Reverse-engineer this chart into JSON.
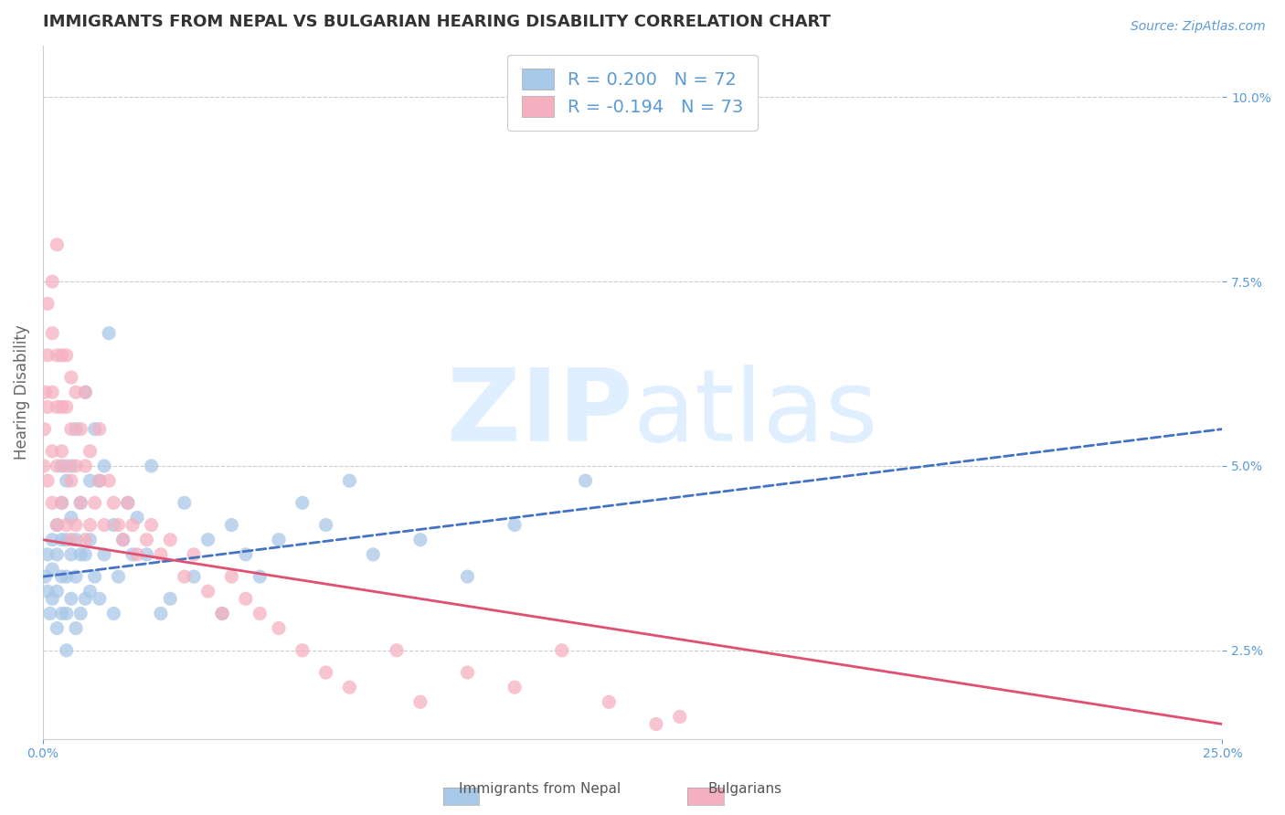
{
  "title": "IMMIGRANTS FROM NEPAL VS BULGARIAN HEARING DISABILITY CORRELATION CHART",
  "source": "Source: ZipAtlas.com",
  "ylabel": "Hearing Disability",
  "xlim": [
    0.0,
    0.25
  ],
  "ylim": [
    0.013,
    0.107
  ],
  "nepal_color": "#a8c8e8",
  "bulgarian_color": "#f5b0c0",
  "nepal_trend_color": "#4472c4",
  "bulgarian_trend_color": "#e05070",
  "background_color": "#ffffff",
  "title_color": "#333333",
  "axis_color": "#5b9bd5",
  "legend_R_color": "#333333",
  "legend_N_color": "#5b9bd5",
  "watermark_color": "#ddeeff",
  "grid_color": "#cccccc",
  "nepal_R": 0.2,
  "bulgarian_R": -0.194,
  "nepal_N": 72,
  "bulgarian_N": 73,
  "nepal_scatter_x": [
    0.0005,
    0.001,
    0.001,
    0.0015,
    0.002,
    0.002,
    0.002,
    0.003,
    0.003,
    0.003,
    0.003,
    0.004,
    0.004,
    0.004,
    0.004,
    0.004,
    0.005,
    0.005,
    0.005,
    0.005,
    0.005,
    0.006,
    0.006,
    0.006,
    0.006,
    0.007,
    0.007,
    0.007,
    0.007,
    0.008,
    0.008,
    0.008,
    0.009,
    0.009,
    0.009,
    0.01,
    0.01,
    0.01,
    0.011,
    0.011,
    0.012,
    0.012,
    0.013,
    0.013,
    0.014,
    0.015,
    0.015,
    0.016,
    0.017,
    0.018,
    0.019,
    0.02,
    0.022,
    0.023,
    0.025,
    0.027,
    0.03,
    0.032,
    0.035,
    0.038,
    0.04,
    0.043,
    0.046,
    0.05,
    0.055,
    0.06,
    0.065,
    0.07,
    0.08,
    0.09,
    0.1,
    0.115
  ],
  "nepal_scatter_y": [
    0.035,
    0.033,
    0.038,
    0.03,
    0.032,
    0.036,
    0.04,
    0.028,
    0.033,
    0.038,
    0.042,
    0.03,
    0.035,
    0.04,
    0.045,
    0.05,
    0.025,
    0.03,
    0.035,
    0.04,
    0.048,
    0.032,
    0.038,
    0.043,
    0.05,
    0.028,
    0.035,
    0.04,
    0.055,
    0.03,
    0.038,
    0.045,
    0.032,
    0.038,
    0.06,
    0.033,
    0.04,
    0.048,
    0.035,
    0.055,
    0.032,
    0.048,
    0.038,
    0.05,
    0.068,
    0.03,
    0.042,
    0.035,
    0.04,
    0.045,
    0.038,
    0.043,
    0.038,
    0.05,
    0.03,
    0.032,
    0.045,
    0.035,
    0.04,
    0.03,
    0.042,
    0.038,
    0.035,
    0.04,
    0.045,
    0.042,
    0.048,
    0.038,
    0.04,
    0.035,
    0.042,
    0.048
  ],
  "bulgarian_scatter_x": [
    0.0002,
    0.0003,
    0.0005,
    0.001,
    0.001,
    0.001,
    0.001,
    0.002,
    0.002,
    0.002,
    0.002,
    0.002,
    0.003,
    0.003,
    0.003,
    0.003,
    0.003,
    0.004,
    0.004,
    0.004,
    0.004,
    0.005,
    0.005,
    0.005,
    0.005,
    0.006,
    0.006,
    0.006,
    0.006,
    0.007,
    0.007,
    0.007,
    0.008,
    0.008,
    0.009,
    0.009,
    0.009,
    0.01,
    0.01,
    0.011,
    0.012,
    0.012,
    0.013,
    0.014,
    0.015,
    0.016,
    0.017,
    0.018,
    0.019,
    0.02,
    0.022,
    0.023,
    0.025,
    0.027,
    0.03,
    0.032,
    0.035,
    0.038,
    0.04,
    0.043,
    0.046,
    0.05,
    0.055,
    0.06,
    0.065,
    0.075,
    0.08,
    0.09,
    0.1,
    0.11,
    0.12,
    0.13,
    0.135
  ],
  "bulgarian_scatter_y": [
    0.05,
    0.055,
    0.06,
    0.048,
    0.058,
    0.065,
    0.072,
    0.045,
    0.052,
    0.06,
    0.068,
    0.075,
    0.042,
    0.05,
    0.058,
    0.065,
    0.08,
    0.045,
    0.052,
    0.058,
    0.065,
    0.042,
    0.05,
    0.058,
    0.065,
    0.04,
    0.048,
    0.055,
    0.062,
    0.042,
    0.05,
    0.06,
    0.045,
    0.055,
    0.04,
    0.05,
    0.06,
    0.042,
    0.052,
    0.045,
    0.048,
    0.055,
    0.042,
    0.048,
    0.045,
    0.042,
    0.04,
    0.045,
    0.042,
    0.038,
    0.04,
    0.042,
    0.038,
    0.04,
    0.035,
    0.038,
    0.033,
    0.03,
    0.035,
    0.032,
    0.03,
    0.028,
    0.025,
    0.022,
    0.02,
    0.025,
    0.018,
    0.022,
    0.02,
    0.025,
    0.018,
    0.015,
    0.016
  ]
}
